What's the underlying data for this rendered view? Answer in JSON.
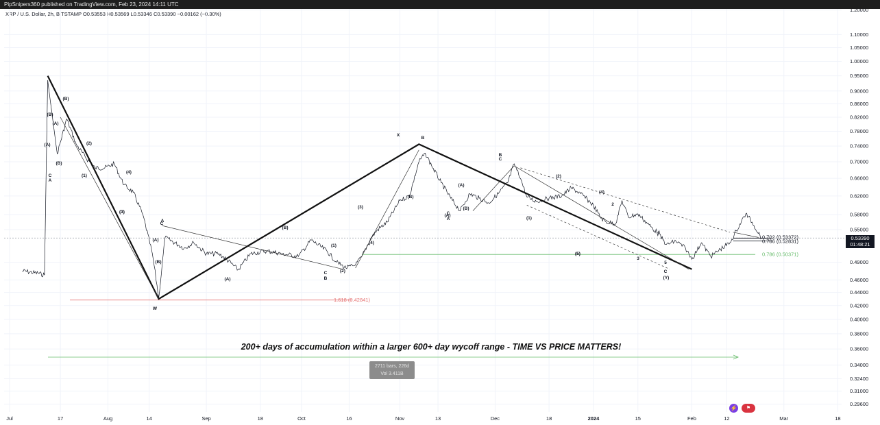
{
  "header": {
    "publish_line": "PipSnipers360 published on TradingView.com, Feb 23, 2024 14:11 UTC",
    "symbol_line": "XRP / U.S. Dollar, 2h, BITSTAMP",
    "ohlc_line": "O0.53553 H0.53569 L0.53346 C0.53390 −0.00162 (−0.30%)"
  },
  "caption": "200+ days of accumulation within a larger 600+ day wycoff range - TIME VS PRICE MATTERS!",
  "measure_tooltip": {
    "bars": "2711 bars, 226d",
    "vol": "Vol 3.411B"
  },
  "price_axis": {
    "ticks": [
      "1.20000",
      "1.10000",
      "1.05000",
      "1.00000",
      "0.95000",
      "0.90000",
      "0.86000",
      "0.82000",
      "0.78000",
      "0.74000",
      "0.70000",
      "0.66000",
      "0.62000",
      "0.58000",
      "0.55000",
      "0.49000",
      "0.46000",
      "0.44000",
      "0.42000",
      "0.40000",
      "0.38000",
      "0.36000",
      "0.34000",
      "0.32400",
      "0.31000",
      "0.29600"
    ],
    "current_price": "0.53390",
    "countdown": "01:48:21"
  },
  "time_axis": {
    "labels": [
      "Jul",
      "17",
      "Aug",
      "14",
      "Sep",
      "18",
      "Oct",
      "16",
      "Nov",
      "13",
      "Dec",
      "18",
      "2024",
      "15",
      "Feb",
      "12",
      "Mar",
      "18"
    ]
  },
  "annotations": {
    "fib_1618": "1.618 (0.42841)",
    "fib_786_low": "0.786 (0.50371)",
    "fib_702": "0.702 (0.53372)",
    "fib_786_high": "0.786 (0.52831)",
    "wave_labels": [
      "(B)",
      "(B)",
      "(A)",
      "(A)",
      "(B)",
      "C",
      "A",
      "(2)",
      "(1)",
      "(4)",
      "(3)",
      "A",
      "C",
      "(A)",
      "(B)",
      "W",
      "(B)",
      "(A)",
      "C",
      "B",
      "(2)",
      "(1)",
      "(3)",
      "(4)",
      "(5)",
      "X",
      "B",
      "(B)",
      "(A)",
      "(A)",
      "C",
      "A",
      "(B)",
      "B",
      "C",
      "(1)",
      "(2)",
      "(3)",
      "(4)",
      "2",
      "3",
      "4",
      "5",
      "C",
      "(Y)",
      "(5)"
    ]
  },
  "chart_data": {
    "type": "line",
    "title": "XRP / U.S. Dollar, 2h, BITSTAMP",
    "xlabel": "",
    "ylabel": "",
    "x": [
      "2023-07-05",
      "2023-07-10",
      "2023-07-12",
      "2023-07-13",
      "2023-07-16",
      "2023-07-19",
      "2023-07-22",
      "2023-07-25",
      "2023-07-28",
      "2023-07-31",
      "2023-08-03",
      "2023-08-06",
      "2023-08-09",
      "2023-08-12",
      "2023-08-15",
      "2023-08-17",
      "2023-08-19",
      "2023-08-22",
      "2023-08-25",
      "2023-08-28",
      "2023-09-01",
      "2023-09-05",
      "2023-09-08",
      "2023-09-11",
      "2023-09-15",
      "2023-09-20",
      "2023-09-25",
      "2023-09-30",
      "2023-10-04",
      "2023-10-09",
      "2023-10-12",
      "2023-10-15",
      "2023-10-18",
      "2023-10-20",
      "2023-10-23",
      "2023-10-25",
      "2023-10-28",
      "2023-11-01",
      "2023-11-04",
      "2023-11-07",
      "2023-11-09",
      "2023-11-11",
      "2023-11-14",
      "2023-11-17",
      "2023-11-20",
      "2023-11-23",
      "2023-11-26",
      "2023-11-29",
      "2023-12-02",
      "2023-12-05",
      "2023-12-07",
      "2023-12-09",
      "2023-12-11",
      "2023-12-14",
      "2023-12-18",
      "2023-12-22",
      "2023-12-25",
      "2023-12-28",
      "2024-01-01",
      "2024-01-03",
      "2024-01-05",
      "2024-01-08",
      "2024-01-10",
      "2024-01-12",
      "2024-01-15",
      "2024-01-18",
      "2024-01-21",
      "2024-01-24",
      "2024-01-27",
      "2024-01-30",
      "2024-02-01",
      "2024-02-04",
      "2024-02-07",
      "2024-02-10",
      "2024-02-13",
      "2024-02-15",
      "2024-02-18",
      "2024-02-20",
      "2024-02-23"
    ],
    "values": [
      0.475,
      0.471,
      0.468,
      0.935,
      0.72,
      0.815,
      0.745,
      0.71,
      0.685,
      0.685,
      0.695,
      0.645,
      0.628,
      0.58,
      0.505,
      0.432,
      0.535,
      0.525,
      0.515,
      0.525,
      0.505,
      0.505,
      0.492,
      0.477,
      0.505,
      0.51,
      0.505,
      0.5,
      0.53,
      0.51,
      0.49,
      0.48,
      0.485,
      0.5,
      0.535,
      0.55,
      0.565,
      0.61,
      0.62,
      0.7,
      0.722,
      0.69,
      0.65,
      0.615,
      0.588,
      0.625,
      0.615,
      0.605,
      0.625,
      0.65,
      0.695,
      0.66,
      0.618,
      0.608,
      0.615,
      0.62,
      0.638,
      0.625,
      0.6,
      0.576,
      0.565,
      0.562,
      0.61,
      0.575,
      0.582,
      0.562,
      0.545,
      0.522,
      0.528,
      0.515,
      0.495,
      0.525,
      0.5,
      0.513,
      0.525,
      0.548,
      0.582,
      0.565,
      0.534
    ],
    "ylim": [
      0.296,
      1.2
    ],
    "y_scale": "log",
    "grid": true,
    "fib_levels": [
      {
        "label": "1.618 (0.42841)",
        "value": 0.42841,
        "color": "#e57373"
      },
      {
        "label": "0.786 (0.50371)",
        "value": 0.50371,
        "color": "#66bb6a"
      },
      {
        "label": "0.702 (0.53372)",
        "value": 0.53372,
        "color": "#131722"
      },
      {
        "label": "0.786 (0.52831)",
        "value": 0.52831,
        "color": "#131722"
      }
    ],
    "main_wave_path": {
      "x": [
        "2023-07-13",
        "2023-08-17",
        "2023-11-07",
        "2024-02-01"
      ],
      "y": [
        0.95,
        0.43,
        0.745,
        0.478
      ]
    },
    "colors": {
      "price": "#131722",
      "accumulation_arrow": "#66bb6a",
      "current_price_box": "#131722"
    }
  }
}
